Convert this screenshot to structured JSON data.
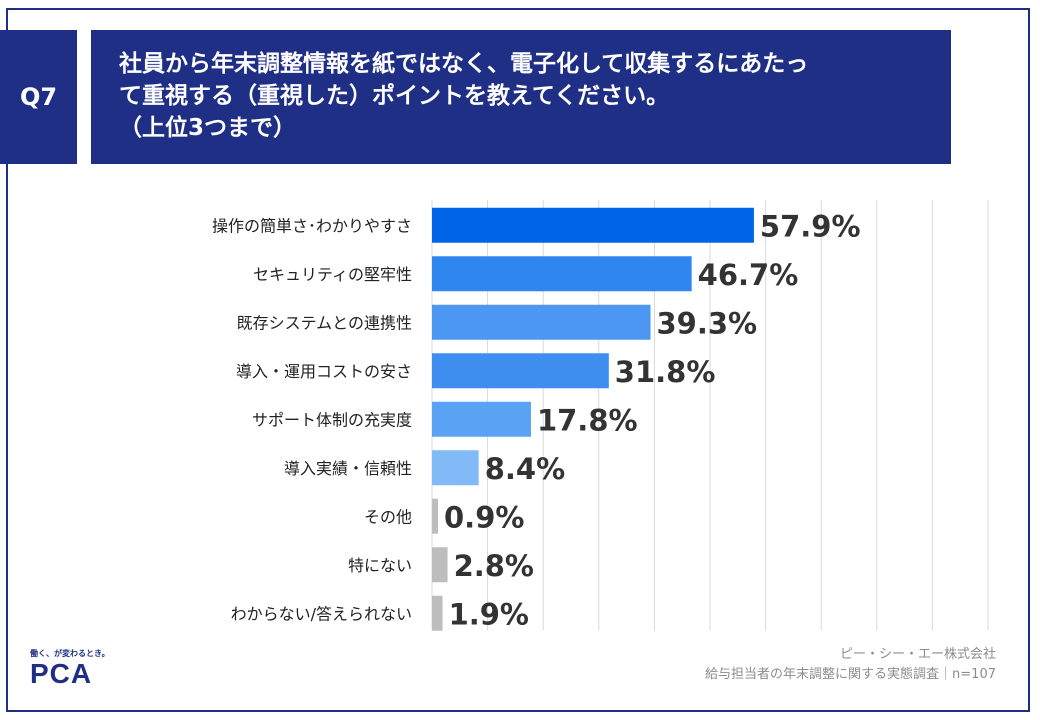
{
  "header": {
    "badge": "Q7",
    "title_lines": [
      "社員から年末調整情報を紙ではなく、電子化して収集するにあたっ",
      "て重視する（重視した）ポイントを教えてください。",
      "（上位3つまで）"
    ]
  },
  "chart_data": {
    "type": "bar",
    "orientation": "horizontal",
    "categories": [
      "操作の簡単さ･わかりやすさ",
      "セキュリティの堅牢性",
      "既存システムとの連携性",
      "導入・運用コストの安さ",
      "サポート体制の充実度",
      "導入実績・信頼性",
      "その他",
      "特にない",
      "わからない/答えられない"
    ],
    "values": [
      57.9,
      46.7,
      39.3,
      31.8,
      17.8,
      8.4,
      0.9,
      2.8,
      1.9
    ],
    "value_labels": [
      "57.9%",
      "46.7%",
      "39.3%",
      "31.8%",
      "17.8%",
      "8.4%",
      "0.9%",
      "2.8%",
      "1.9%"
    ],
    "colors": [
      "#0066e8",
      "#2f86ef",
      "#4c97f2",
      "#3e8ef0",
      "#5aa2f4",
      "#82baf7",
      "#bdbdbd",
      "#bdbdbd",
      "#bdbdbd"
    ],
    "xlim": [
      0,
      100
    ],
    "grid": true
  },
  "footer": {
    "logo_tagline": "働く、が変わるとき。",
    "logo_text": "PCA",
    "company": "ピー・シー・エー株式会社",
    "survey": "給与担当者の年末調整に関する実態調査｜n=107"
  }
}
